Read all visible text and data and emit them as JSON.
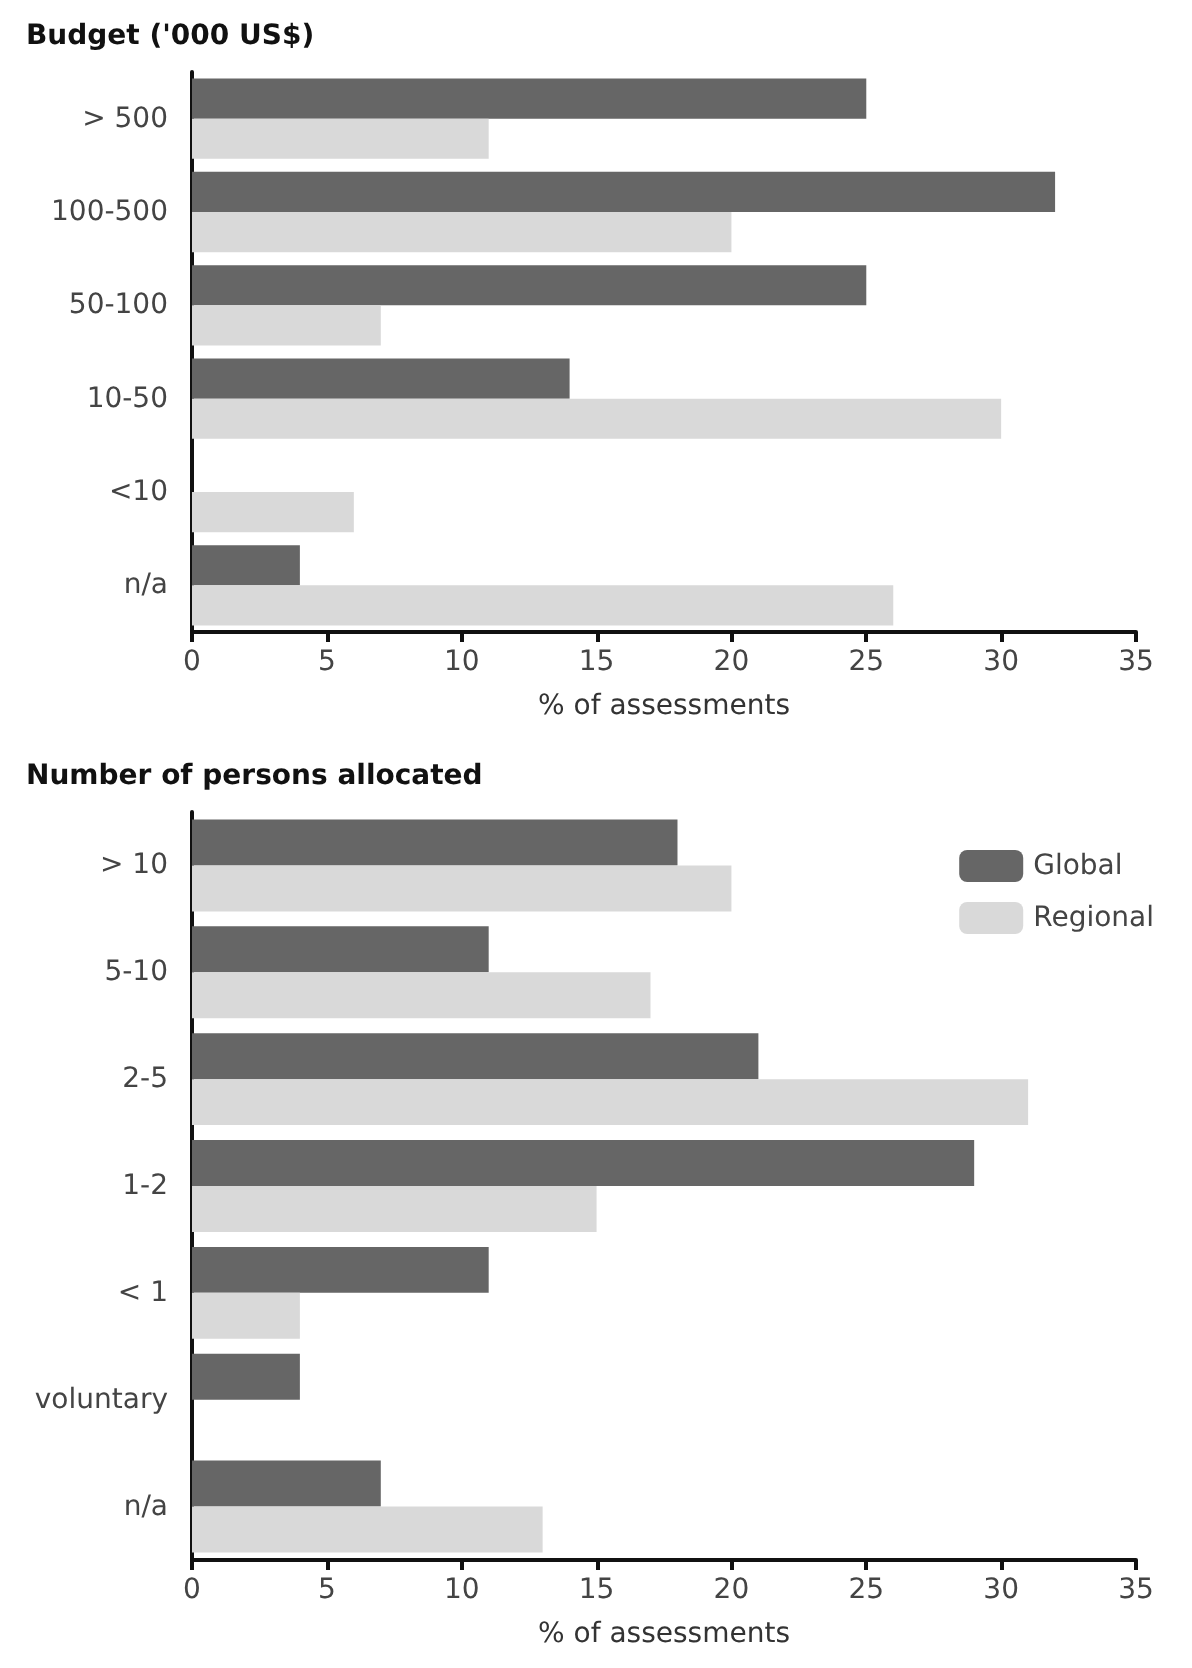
{
  "chart_data": [
    {
      "type": "bar",
      "orientation": "horizontal",
      "title": "Budget ('000 US$)",
      "xlabel": "% of assessments",
      "categories": [
        "> 500",
        "100-500",
        "50-100",
        "10-50",
        "<10",
        "n/a"
      ],
      "series": [
        {
          "color": "#666666",
          "values": [
            25,
            32,
            25,
            14,
            null,
            4
          ]
        },
        {
          "color": "#d9d9d9",
          "values": [
            11,
            20,
            7,
            30,
            6,
            26
          ]
        }
      ],
      "xlim": [
        0,
        35
      ],
      "xticks": [
        0,
        5,
        10,
        15,
        20,
        25,
        30,
        35
      ],
      "grid": false,
      "legend": false
    },
    {
      "type": "bar",
      "orientation": "horizontal",
      "title": "Number of persons allocated",
      "xlabel": "% of assessments",
      "categories": [
        "> 10",
        "5-10",
        "2-5",
        "1-2",
        "< 1",
        "voluntary",
        "n/a"
      ],
      "series": [
        {
          "name": "Global",
          "color": "#666666",
          "values": [
            18,
            11,
            21,
            29,
            11,
            4,
            7
          ]
        },
        {
          "name": "Regional",
          "color": "#d9d9d9",
          "values": [
            20,
            17,
            31,
            15,
            4,
            null,
            13
          ]
        }
      ],
      "xlim": [
        0,
        35
      ],
      "xticks": [
        0,
        5,
        10,
        15,
        20,
        25,
        30,
        35
      ],
      "grid": false,
      "legend": "top right"
    }
  ]
}
